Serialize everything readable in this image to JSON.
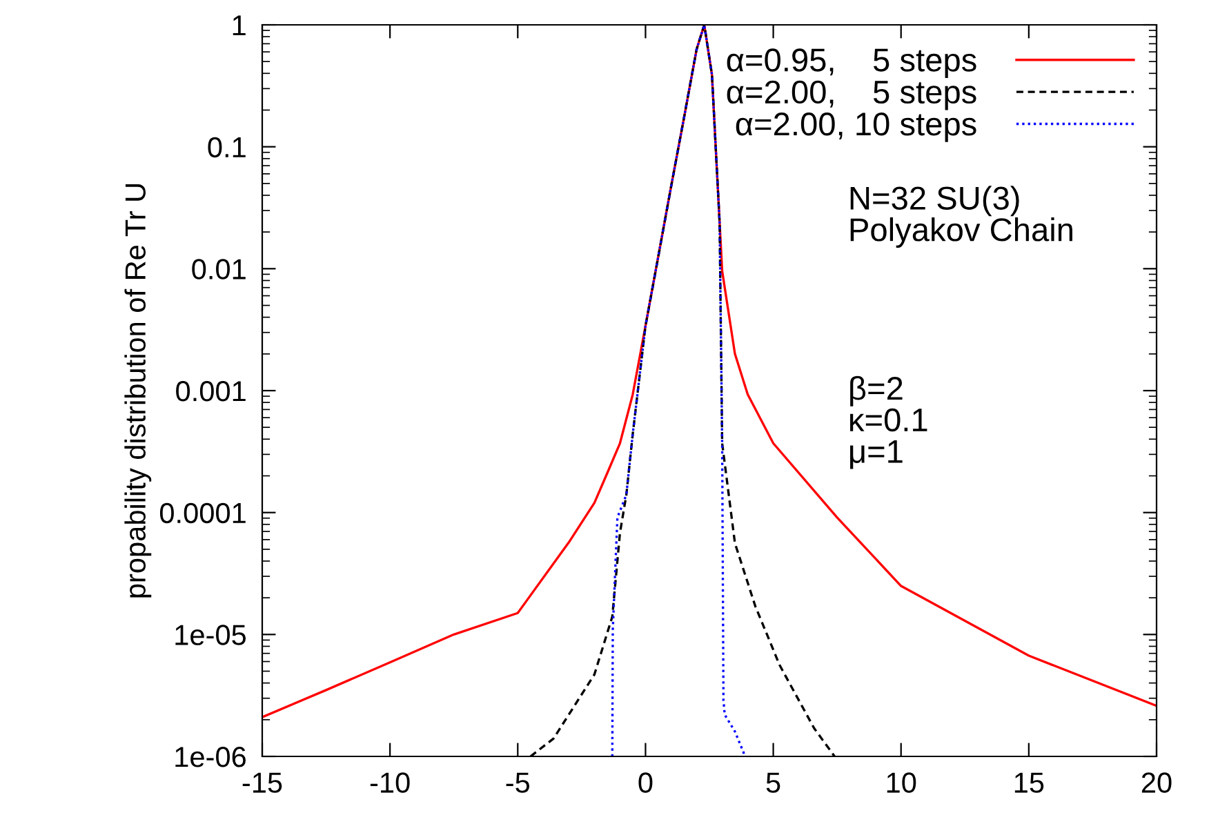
{
  "chart_data": {
    "type": "line",
    "ylabel": "propability distribution of Re Tr U",
    "log": "y",
    "xlim": [
      -15,
      20
    ],
    "ylim": [
      1e-06,
      1
    ],
    "xticks": [
      -15,
      -10,
      -5,
      0,
      5,
      10,
      15,
      20
    ],
    "yticks": [
      {
        "value": 1e-06,
        "label": "1e-06"
      },
      {
        "value": 1e-05,
        "label": "1e-05"
      },
      {
        "value": 0.0001,
        "label": "0.0001"
      },
      {
        "value": 0.001,
        "label": "0.001"
      },
      {
        "value": 0.01,
        "label": "0.01"
      },
      {
        "value": 0.1,
        "label": "0.1"
      },
      {
        "value": 1,
        "label": "1"
      }
    ],
    "legend": "top right",
    "grid": false,
    "annotations": [
      "N=32 SU(3)\nPolyakov Chain",
      "β=2\nκ=0.1\nμ=1"
    ],
    "series": [
      {
        "name": "α=0.95,    5 steps",
        "color": "#ff0000",
        "line_style": "solid",
        "x": [
          -15,
          -12.5,
          -10,
          -7.5,
          -5,
          -3,
          -2,
          -1.5,
          -1,
          -0.5,
          0,
          0.5,
          1,
          1.5,
          2,
          2.3,
          2.6,
          2.9,
          3.0,
          3.5,
          4,
          5,
          7.5,
          10,
          15,
          20
        ],
        "values": [
          2.1e-06,
          3.5e-06,
          5.9e-06,
          1e-05,
          1.5e-05,
          5.7e-05,
          0.00012,
          0.00021,
          0.00037,
          0.00093,
          0.0034,
          0.0126,
          0.047,
          0.17,
          0.63,
          1,
          0.39,
          0.024,
          0.0096,
          0.002,
          0.00093,
          0.00037,
          9.1e-05,
          2.5e-05,
          6.7e-06,
          2.6e-06
        ]
      },
      {
        "name": "α=2.00,    5 steps",
        "color": "#000000",
        "line_style": "dashed",
        "x": [
          -4.5,
          -3.6,
          -2.0,
          -1.3,
          -1,
          -0.75,
          -0.5,
          0,
          0.5,
          1,
          1.5,
          2,
          2.3,
          2.6,
          2.9,
          3.0,
          3.5,
          4.3,
          5.25,
          6.6,
          7.4
        ],
        "values": [
          1e-06,
          1.4e-06,
          4.7e-06,
          1.4e-05,
          6.8e-05,
          0.00014,
          0.00044,
          0.0034,
          0.0126,
          0.047,
          0.17,
          0.63,
          1,
          0.39,
          0.024,
          0.00037,
          5.6e-05,
          1.7e-05,
          5.6e-06,
          1.7e-06,
          1e-06
        ]
      },
      {
        "name": "α=2.00, 10 steps",
        "color": "#0000ff",
        "line_style": "dotted",
        "x": [
          -1.3,
          -1.28,
          -1.1,
          -0.75,
          -0.5,
          0,
          0.5,
          1,
          1.5,
          2,
          2.3,
          2.6,
          2.9,
          3.0,
          3.05,
          3.1,
          3.5,
          3.9
        ],
        "values": [
          1e-06,
          1.1e-05,
          9.1e-05,
          0.00014,
          0.00044,
          0.0034,
          0.0126,
          0.047,
          0.17,
          0.63,
          1,
          0.39,
          0.024,
          0.00037,
          2.9e-06,
          2.2e-06,
          1.6e-06,
          1e-06
        ]
      }
    ]
  }
}
